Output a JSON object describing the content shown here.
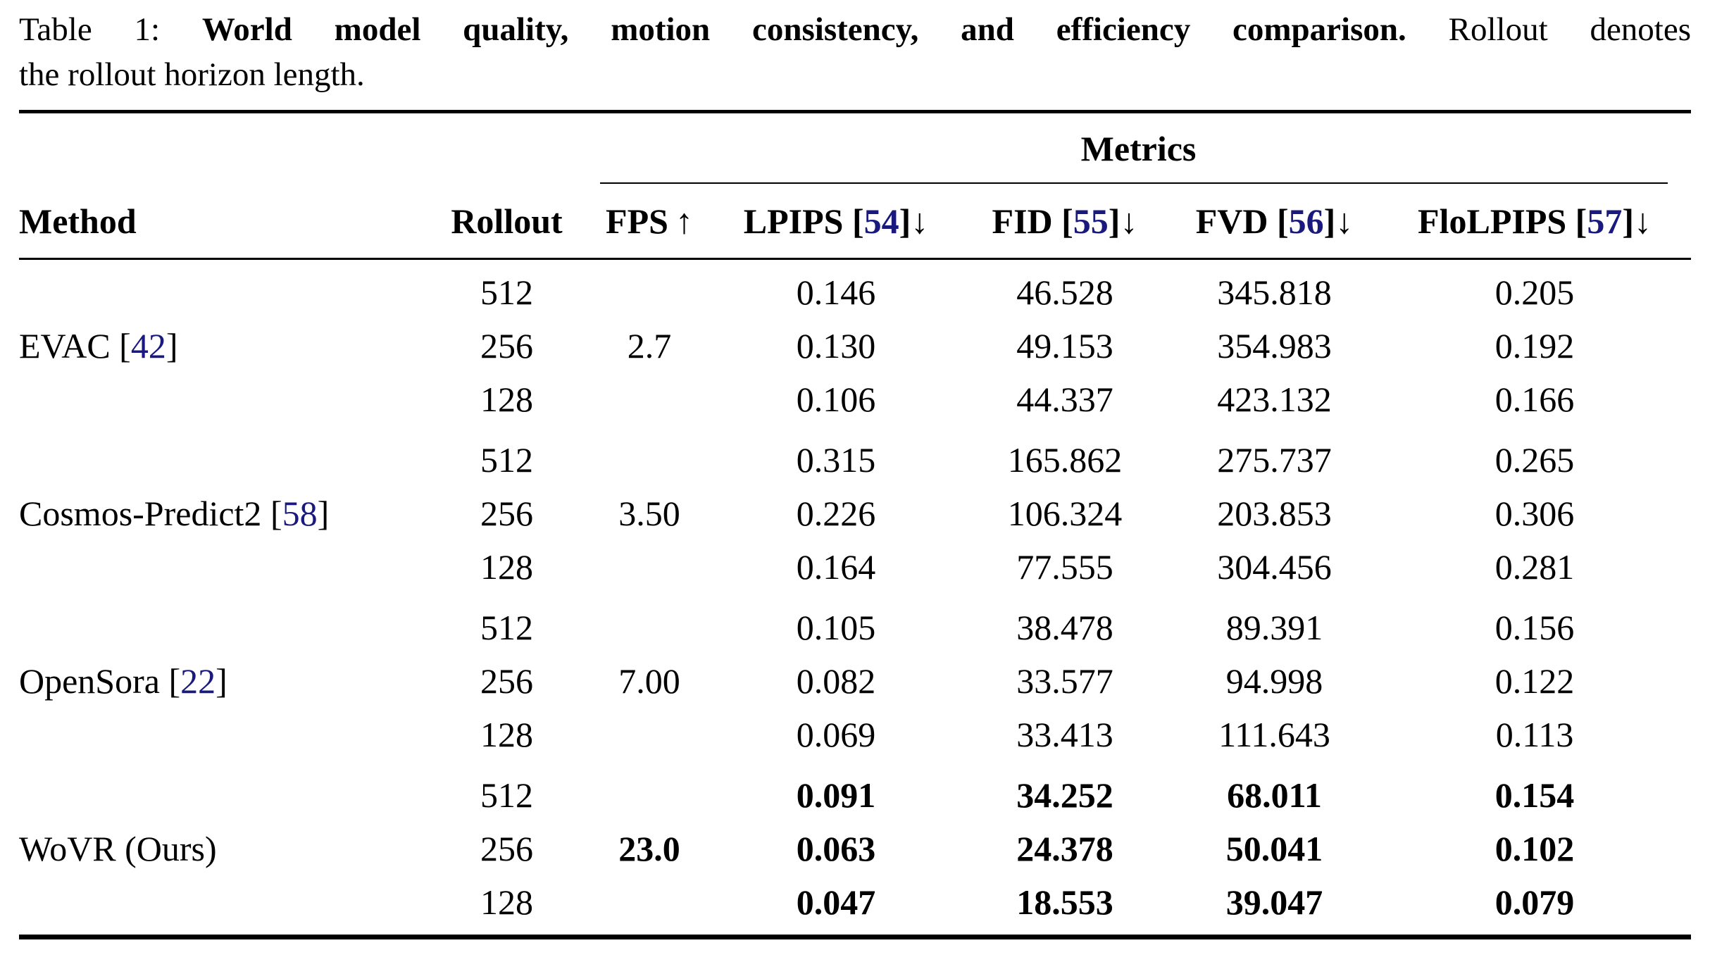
{
  "caption": {
    "prefix": "Table 1: ",
    "bold": "World model quality, motion consistency, and efficiency comparison.",
    "rest_line1": " Rollout denotes",
    "line2": "the rollout horizon length."
  },
  "table": {
    "metrics_group_label": "Metrics",
    "cite_open": "[",
    "cite_close": "]",
    "up_arrow": "↑",
    "down_arrow": "↓",
    "columns": {
      "method": "Method",
      "rollout": "Rollout",
      "fps": "FPS",
      "metric_headers": [
        {
          "name": "LPIPS",
          "cite": "54"
        },
        {
          "name": "FID",
          "cite": "55"
        },
        {
          "name": "FVD",
          "cite": "56"
        },
        {
          "name": "FloLPIPS",
          "cite": "57"
        }
      ]
    },
    "colors": {
      "citation": "#1a1a7e"
    },
    "groups": [
      {
        "method_pre": "EVAC ",
        "cite": "42",
        "method_post": "]",
        "bracket": "[",
        "fps": "2.7",
        "rows": [
          {
            "rollout": "512",
            "lpips": "0.146",
            "fid": "46.528",
            "fvd": "345.818",
            "flolpips": "0.205"
          },
          {
            "rollout": "256",
            "lpips": "0.130",
            "fid": "49.153",
            "fvd": "354.983",
            "flolpips": "0.192"
          },
          {
            "rollout": "128",
            "lpips": "0.106",
            "fid": "44.337",
            "fvd": "423.132",
            "flolpips": "0.166"
          }
        ]
      },
      {
        "method_pre": "Cosmos-Predict2 ",
        "cite": "58",
        "method_post": "]",
        "bracket": "[",
        "fps": "3.50",
        "rows": [
          {
            "rollout": "512",
            "lpips": "0.315",
            "fid": "165.862",
            "fvd": "275.737",
            "flolpips": "0.265"
          },
          {
            "rollout": "256",
            "lpips": "0.226",
            "fid": "106.324",
            "fvd": "203.853",
            "flolpips": "0.306"
          },
          {
            "rollout": "128",
            "lpips": "0.164",
            "fid": "77.555",
            "fvd": "304.456",
            "flolpips": "0.281"
          }
        ]
      },
      {
        "method_pre": "OpenSora ",
        "cite": "22",
        "method_post": "]",
        "bracket": "[",
        "fps": "7.00",
        "rows": [
          {
            "rollout": "512",
            "lpips": "0.105",
            "fid": "38.478",
            "fvd": "89.391",
            "flolpips": "0.156"
          },
          {
            "rollout": "256",
            "lpips": "0.082",
            "fid": "33.577",
            "fvd": "94.998",
            "flolpips": "0.122"
          },
          {
            "rollout": "128",
            "lpips": "0.069",
            "fid": "33.413",
            "fvd": "111.643",
            "flolpips": "0.113"
          }
        ]
      },
      {
        "method_pre": "WoVR (Ours)",
        "cite": null,
        "method_post": "",
        "bracket": "",
        "fps": "23.0",
        "rows": [
          {
            "rollout": "512",
            "lpips": "0.091",
            "fid": "34.252",
            "fvd": "68.011",
            "flolpips": "0.154"
          },
          {
            "rollout": "256",
            "lpips": "0.063",
            "fid": "24.378",
            "fvd": "50.041",
            "flolpips": "0.102"
          },
          {
            "rollout": "128",
            "lpips": "0.047",
            "fid": "18.553",
            "fvd": "39.047",
            "flolpips": "0.079"
          }
        ]
      }
    ]
  }
}
